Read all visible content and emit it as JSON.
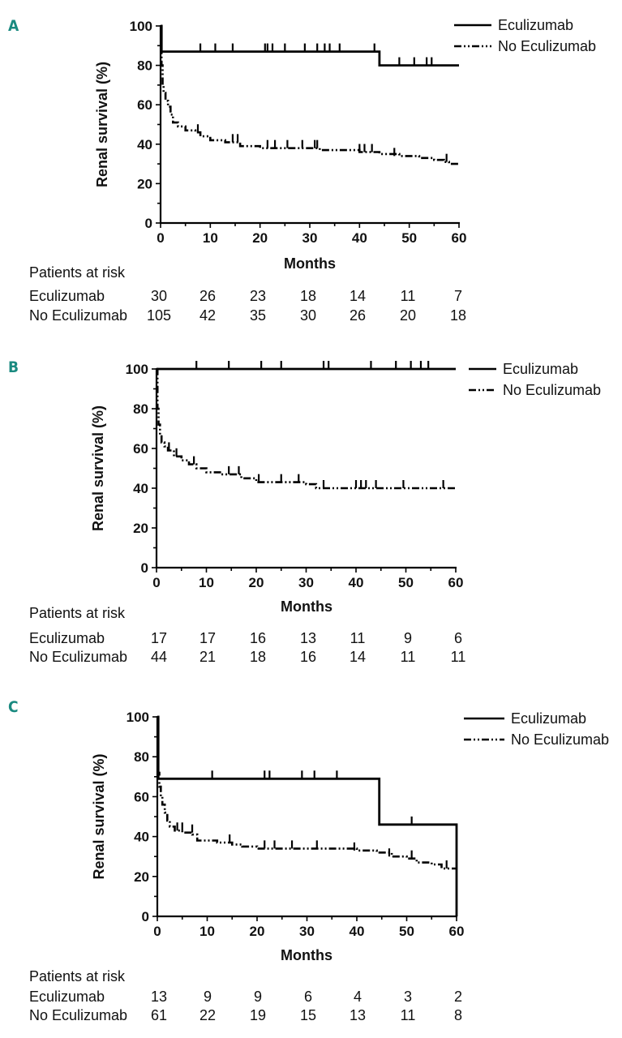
{
  "chart_data": [
    {
      "panel": "A",
      "type": "line",
      "ylabel": "Renal survival (%)",
      "xlabel": "Months",
      "xlim": [
        0,
        60
      ],
      "ylim": [
        0,
        100
      ],
      "x_ticks": [
        0,
        10,
        20,
        30,
        40,
        50,
        60
      ],
      "y_ticks": [
        0,
        20,
        40,
        60,
        80,
        100
      ],
      "legend": [
        "Eculizumab",
        "No Eculizumab"
      ],
      "series": [
        {
          "name": "Eculizumab",
          "style": "solid",
          "points": [
            [
              0,
              100
            ],
            [
              0.2,
              100
            ],
            [
              0.2,
              87
            ],
            [
              44,
              87
            ],
            [
              44,
              80
            ],
            [
              60,
              80
            ]
          ],
          "censor": [
            [
              8,
              87
            ],
            [
              11,
              87
            ],
            [
              14.5,
              87
            ],
            [
              21,
              87
            ],
            [
              21.5,
              87
            ],
            [
              22.5,
              87
            ],
            [
              25,
              87
            ],
            [
              29,
              87
            ],
            [
              31.5,
              87
            ],
            [
              33,
              87
            ],
            [
              34,
              87
            ],
            [
              36,
              87
            ],
            [
              43,
              87
            ],
            [
              48,
              80
            ],
            [
              51,
              80
            ],
            [
              53.5,
              80
            ],
            [
              54.5,
              80
            ]
          ]
        },
        {
          "name": "No Eculizumab",
          "style": "dashdot",
          "points": [
            [
              0,
              100
            ],
            [
              0.2,
              80
            ],
            [
              0.4,
              70
            ],
            [
              0.6,
              66
            ],
            [
              1,
              62
            ],
            [
              1.5,
              59
            ],
            [
              2,
              55
            ],
            [
              2.5,
              51
            ],
            [
              3.5,
              49
            ],
            [
              5,
              47
            ],
            [
              7,
              46
            ],
            [
              8,
              44
            ],
            [
              10,
              42
            ],
            [
              13,
              41
            ],
            [
              16,
              39
            ],
            [
              20,
              38
            ],
            [
              26,
              38
            ],
            [
              32,
              37
            ],
            [
              34,
              37
            ],
            [
              40,
              36
            ],
            [
              44,
              35
            ],
            [
              48,
              34
            ],
            [
              52,
              33
            ],
            [
              55,
              32
            ],
            [
              57,
              31
            ],
            [
              58,
              30
            ],
            [
              60,
              30
            ]
          ],
          "censor": [
            [
              7.5,
              46
            ],
            [
              14.5,
              41
            ],
            [
              15.5,
              41
            ],
            [
              21.5,
              38
            ],
            [
              23,
              38
            ],
            [
              25.5,
              38
            ],
            [
              28.5,
              38
            ],
            [
              31,
              38
            ],
            [
              31.5,
              38
            ],
            [
              40,
              36
            ],
            [
              41,
              36
            ],
            [
              42.5,
              36
            ],
            [
              47,
              34
            ],
            [
              57.5,
              31
            ]
          ]
        }
      ],
      "risk_header": "Patients at risk",
      "risk_table": [
        {
          "label": "Eculizumab",
          "values": [
            "30",
            "26",
            "23",
            "18",
            "14",
            "11",
            "7"
          ]
        },
        {
          "label": "No Eculizumab",
          "values": [
            "105",
            "42",
            "35",
            "30",
            "26",
            "20",
            "18"
          ]
        }
      ]
    },
    {
      "panel": "B",
      "type": "line",
      "ylabel": "Renal survival (%)",
      "xlabel": "Months",
      "xlim": [
        0,
        60
      ],
      "ylim": [
        0,
        100
      ],
      "x_ticks": [
        0,
        10,
        20,
        30,
        40,
        50,
        60
      ],
      "y_ticks": [
        0,
        20,
        40,
        60,
        80,
        100
      ],
      "legend": [
        "Eculizumab",
        "No Eculizumab"
      ],
      "series": [
        {
          "name": "Eculizumab",
          "style": "solid",
          "points": [
            [
              0,
              100
            ],
            [
              60,
              100
            ]
          ],
          "censor": [
            [
              8,
              100
            ],
            [
              14.5,
              100
            ],
            [
              21,
              100
            ],
            [
              25,
              100
            ],
            [
              33.5,
              100
            ],
            [
              34.5,
              100
            ],
            [
              43,
              100
            ],
            [
              48,
              100
            ],
            [
              51,
              100
            ],
            [
              53,
              100
            ],
            [
              54.5,
              100
            ]
          ]
        },
        {
          "name": "No Eculizumab",
          "style": "dashdot",
          "points": [
            [
              0,
              100
            ],
            [
              0.2,
              80
            ],
            [
              0.4,
              72
            ],
            [
              0.7,
              67
            ],
            [
              1,
              63
            ],
            [
              1.6,
              61
            ],
            [
              2.3,
              59
            ],
            [
              3.5,
              56
            ],
            [
              5,
              54
            ],
            [
              6.5,
              52
            ],
            [
              8,
              50
            ],
            [
              10,
              48
            ],
            [
              13,
              47
            ],
            [
              17,
              45
            ],
            [
              20,
              43
            ],
            [
              24,
              43
            ],
            [
              30,
              42
            ],
            [
              32,
              40
            ],
            [
              37,
              40
            ],
            [
              43,
              40
            ],
            [
              60,
              40
            ]
          ],
          "censor": [
            [
              2.5,
              59
            ],
            [
              4,
              56
            ],
            [
              7.5,
              52
            ],
            [
              14.5,
              47
            ],
            [
              16.5,
              47
            ],
            [
              20.5,
              43
            ],
            [
              25,
              43
            ],
            [
              28.5,
              43
            ],
            [
              33.5,
              40
            ],
            [
              40,
              40
            ],
            [
              41,
              40
            ],
            [
              42,
              40
            ],
            [
              44,
              40
            ],
            [
              49.5,
              40
            ],
            [
              57.5,
              40
            ]
          ]
        }
      ],
      "risk_header": "Patients at risk",
      "risk_table": [
        {
          "label": "Eculizumab",
          "values": [
            "17",
            "17",
            "16",
            "13",
            "11",
            "9",
            "6"
          ]
        },
        {
          "label": "No Eculizumab",
          "values": [
            "44",
            "21",
            "18",
            "16",
            "14",
            "11",
            "11"
          ]
        }
      ]
    },
    {
      "panel": "C",
      "type": "line",
      "ylabel": "Renal survival (%)",
      "xlabel": "Months",
      "xlim": [
        0,
        60
      ],
      "ylim": [
        0,
        100
      ],
      "x_ticks": [
        0,
        10,
        20,
        30,
        40,
        50,
        60
      ],
      "y_ticks": [
        0,
        20,
        40,
        60,
        80,
        100
      ],
      "legend": [
        "Eculizumab",
        "No Eculizumab"
      ],
      "series": [
        {
          "name": "Eculizumab",
          "style": "solid",
          "points": [
            [
              0,
              100
            ],
            [
              0.2,
              100
            ],
            [
              0.2,
              69
            ],
            [
              44.5,
              69
            ],
            [
              44.5,
              46
            ],
            [
              60,
              46
            ],
            [
              60,
              0
            ]
          ],
          "censor": [
            [
              11,
              69
            ],
            [
              21.5,
              69
            ],
            [
              22.5,
              69
            ],
            [
              29,
              69
            ],
            [
              31.5,
              69
            ],
            [
              36,
              69
            ],
            [
              51,
              46
            ]
          ]
        },
        {
          "name": "No Eculizumab",
          "style": "dashdot",
          "points": [
            [
              0,
              100
            ],
            [
              0.2,
              72
            ],
            [
              0.4,
              65
            ],
            [
              0.7,
              60
            ],
            [
              1,
              56
            ],
            [
              1.5,
              52
            ],
            [
              2,
              48
            ],
            [
              2.5,
              45
            ],
            [
              3.5,
              43
            ],
            [
              5,
              42
            ],
            [
              7,
              41
            ],
            [
              8,
              38
            ],
            [
              12,
              37
            ],
            [
              15,
              36
            ],
            [
              17,
              35
            ],
            [
              20,
              34
            ],
            [
              24,
              34
            ],
            [
              30,
              34
            ],
            [
              40,
              33
            ],
            [
              44,
              32
            ],
            [
              47,
              30
            ],
            [
              50,
              29
            ],
            [
              52,
              27
            ],
            [
              55,
              26
            ],
            [
              57,
              24
            ],
            [
              60,
              24
            ]
          ],
          "censor": [
            [
              4,
              43
            ],
            [
              5,
              43
            ],
            [
              7,
              42
            ],
            [
              14.5,
              37
            ],
            [
              21.5,
              34
            ],
            [
              23.5,
              34
            ],
            [
              27,
              34
            ],
            [
              32,
              34
            ],
            [
              39.5,
              33
            ],
            [
              46.5,
              30
            ],
            [
              51,
              29
            ],
            [
              58,
              24
            ]
          ]
        }
      ],
      "risk_header": "Patients at risk",
      "risk_table": [
        {
          "label": "Eculizumab",
          "values": [
            "13",
            "9",
            "9",
            "6",
            "4",
            "3",
            "2"
          ]
        },
        {
          "label": "No Eculizumab",
          "values": [
            "61",
            "22",
            "19",
            "15",
            "13",
            "11",
            "8"
          ]
        }
      ]
    }
  ]
}
